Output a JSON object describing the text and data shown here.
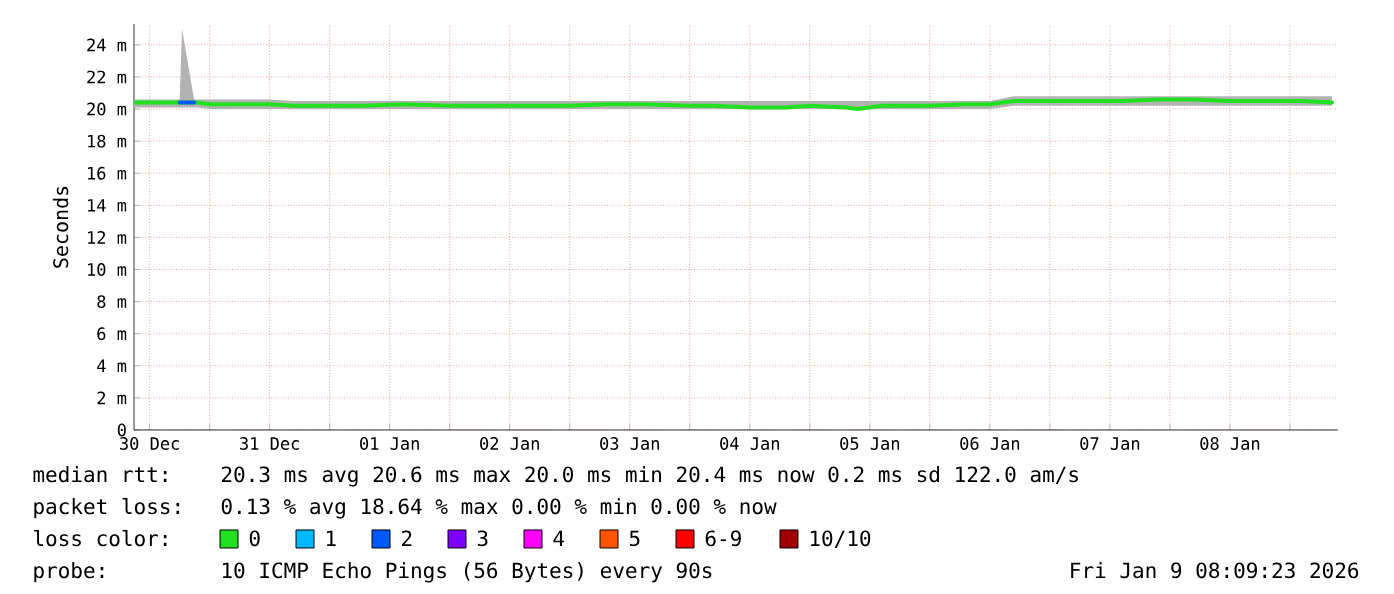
{
  "chart_data": {
    "type": "line",
    "ylabel": "Seconds",
    "legend_title": "loss color:",
    "legend": "bottom",
    "grid": true,
    "marker": "none",
    "line_style": "solid",
    "xlim": [
      "2025-12-29T20:53",
      "2026-01-08T21:36"
    ],
    "ylim": [
      0,
      25.3
    ],
    "xticks": [
      {
        "value": "2025-12-30T00:00",
        "label": "30 Dec"
      },
      {
        "value": "2025-12-30T12:00",
        "label": null
      },
      {
        "value": "2025-12-31T00:00",
        "label": "31 Dec"
      },
      {
        "value": "2025-12-31T12:00",
        "label": null
      },
      {
        "value": "2026-01-01T00:00",
        "label": "01 Jan"
      },
      {
        "value": "2026-01-01T12:00",
        "label": null
      },
      {
        "value": "2026-01-02T00:00",
        "label": "02 Jan"
      },
      {
        "value": "2026-01-02T12:00",
        "label": null
      },
      {
        "value": "2026-01-03T00:00",
        "label": "03 Jan"
      },
      {
        "value": "2026-01-03T12:00",
        "label": null
      },
      {
        "value": "2026-01-04T00:00",
        "label": "04 Jan"
      },
      {
        "value": "2026-01-04T12:00",
        "label": null
      },
      {
        "value": "2026-01-05T00:00",
        "label": "05 Jan"
      },
      {
        "value": "2026-01-05T12:00",
        "label": null
      },
      {
        "value": "2026-01-06T00:00",
        "label": "06 Jan"
      },
      {
        "value": "2026-01-06T12:00",
        "label": null
      },
      {
        "value": "2026-01-07T00:00",
        "label": "07 Jan"
      },
      {
        "value": "2026-01-07T12:00",
        "label": null
      },
      {
        "value": "2026-01-08T00:00",
        "label": "08 Jan"
      },
      {
        "value": "2026-01-08T12:00",
        "label": null
      }
    ],
    "yticks": [
      0,
      {
        "value": 2,
        "label": "2 m"
      },
      {
        "value": 4,
        "label": "4 m"
      },
      {
        "value": 6,
        "label": "6 m"
      },
      {
        "value": 8,
        "label": "8 m"
      },
      {
        "value": 10,
        "label": "10 m"
      },
      {
        "value": 12,
        "label": "12 m"
      },
      {
        "value": 14,
        "label": "14 m"
      },
      {
        "value": 16,
        "label": "16 m"
      },
      {
        "value": 18,
        "label": "18 m"
      },
      {
        "value": 20,
        "label": "20 m"
      },
      {
        "value": 22,
        "label": "22 m"
      },
      {
        "value": 24,
        "label": "24 m"
      }
    ],
    "x": [
      "2025-12-29T20:53",
      "2025-12-30T00:00",
      "2025-12-30T03:36",
      "2025-12-30T06:00",
      "2025-12-30T06:29",
      "2025-12-30T08:53",
      "2025-12-30T09:36",
      "2025-12-30T12:00",
      "2025-12-30T19:12",
      "2025-12-31T00:00",
      "2025-12-31T04:48",
      "2025-12-31T12:00",
      "2025-12-31T19:12",
      "2026-01-01T02:24",
      "2026-01-01T12:00",
      "2026-01-01T19:12",
      "2026-01-02T02:24",
      "2026-01-02T12:00",
      "2026-01-02T19:12",
      "2026-01-03T02:24",
      "2026-01-03T12:00",
      "2026-01-03T16:48",
      "2026-01-04T00:00",
      "2026-01-04T07:12",
      "2026-01-04T12:00",
      "2026-01-04T19:12",
      "2026-01-04T21:36",
      "2026-01-05T02:24",
      "2026-01-05T07:12",
      "2026-01-05T12:00",
      "2026-01-05T19:12",
      "2026-01-06T00:00",
      "2026-01-06T04:48",
      "2026-01-06T12:00",
      "2026-01-06T19:12",
      "2026-01-07T02:24",
      "2026-01-07T09:36",
      "2026-01-07T16:48",
      "2026-01-08T00:00",
      "2026-01-08T07:12",
      "2026-01-08T14:24",
      "2026-01-08T20:24"
    ],
    "series": [
      {
        "name": "0",
        "color": "#20e020",
        "values": [
          20.4,
          20.4,
          20.4,
          20.4,
          20.4,
          20.4,
          20.4,
          20.3,
          20.3,
          20.3,
          20.2,
          20.2,
          20.2,
          20.3,
          20.2,
          20.2,
          20.2,
          20.2,
          20.3,
          20.3,
          20.2,
          20.2,
          20.1,
          20.1,
          20.2,
          20.1,
          20.0,
          20.2,
          20.2,
          20.2,
          20.3,
          20.3,
          20.5,
          20.5,
          20.5,
          20.5,
          20.6,
          20.6,
          20.5,
          20.5,
          20.5,
          20.4
        ],
        "lower": [
          20.1,
          20.1,
          20.1,
          20.1,
          20.1,
          20.1,
          20.1,
          20.0,
          20.0,
          20.0,
          20.0,
          20.0,
          20.0,
          20.0,
          20.0,
          20.0,
          20.0,
          20.0,
          20.0,
          20.0,
          20.0,
          20.0,
          20.0,
          20.0,
          20.0,
          20.0,
          20.0,
          20.0,
          20.0,
          20.0,
          20.0,
          20.0,
          20.2,
          20.2,
          20.2,
          20.2,
          20.2,
          20.2,
          20.2,
          20.2,
          20.2,
          20.2
        ],
        "upper": [
          20.6,
          20.6,
          20.6,
          20.6,
          25.0,
          20.6,
          20.6,
          20.6,
          20.6,
          20.6,
          20.5,
          20.5,
          20.5,
          20.5,
          20.5,
          20.5,
          20.5,
          20.5,
          20.5,
          20.5,
          20.5,
          20.5,
          20.5,
          20.5,
          20.5,
          20.5,
          20.5,
          20.5,
          20.5,
          20.5,
          20.5,
          20.5,
          20.8,
          20.8,
          20.8,
          20.8,
          20.8,
          20.8,
          20.8,
          20.8,
          20.8,
          20.8
        ]
      },
      {
        "name": "1",
        "color": "#00b8ff",
        "values": [
          null,
          null,
          null,
          null,
          null,
          null,
          null,
          null,
          null,
          null,
          null,
          null,
          null,
          null,
          null,
          null,
          null,
          null,
          null,
          null,
          null,
          null,
          null,
          null,
          null,
          null,
          null,
          null,
          null,
          null,
          null,
          null,
          null,
          null,
          null,
          null,
          null,
          null,
          null,
          null,
          null,
          null
        ]
      },
      {
        "name": "2",
        "color": "#0059ff",
        "values": [
          null,
          null,
          null,
          20.4,
          20.4,
          20.4,
          null,
          null,
          null,
          null,
          null,
          null,
          null,
          null,
          null,
          null,
          null,
          null,
          null,
          null,
          null,
          null,
          null,
          null,
          null,
          null,
          null,
          null,
          null,
          null,
          null,
          null,
          null,
          null,
          null,
          null,
          null,
          null,
          null,
          null,
          null,
          null
        ]
      },
      {
        "name": "3",
        "color": "#7e00ff",
        "values": [
          null,
          null,
          null,
          null,
          null,
          null,
          null,
          null,
          null,
          null,
          null,
          null,
          null,
          null,
          null,
          null,
          null,
          null,
          null,
          null,
          null,
          null,
          null,
          null,
          null,
          null,
          null,
          null,
          null,
          null,
          null,
          null,
          null,
          null,
          null,
          null,
          null,
          null,
          null,
          null,
          null,
          null
        ]
      },
      {
        "name": "4",
        "color": "#ff00ff",
        "values": [
          null,
          null,
          null,
          null,
          null,
          null,
          null,
          null,
          null,
          null,
          null,
          null,
          null,
          null,
          null,
          null,
          null,
          null,
          null,
          null,
          null,
          null,
          null,
          null,
          null,
          null,
          null,
          null,
          null,
          null,
          null,
          null,
          null,
          null,
          null,
          null,
          null,
          null,
          null,
          null,
          null,
          null
        ]
      },
      {
        "name": "5",
        "color": "#ff5500",
        "values": [
          null,
          null,
          null,
          null,
          null,
          null,
          null,
          null,
          null,
          null,
          null,
          null,
          null,
          null,
          null,
          null,
          null,
          null,
          null,
          null,
          null,
          null,
          null,
          null,
          null,
          null,
          null,
          null,
          null,
          null,
          null,
          null,
          null,
          null,
          null,
          null,
          null,
          null,
          null,
          null,
          null,
          null
        ]
      },
      {
        "name": "6-9",
        "color": "#ff0000",
        "values": [
          null,
          null,
          null,
          null,
          null,
          null,
          null,
          null,
          null,
          null,
          null,
          null,
          null,
          null,
          null,
          null,
          null,
          null,
          null,
          null,
          null,
          null,
          null,
          null,
          null,
          null,
          null,
          null,
          null,
          null,
          null,
          null,
          null,
          null,
          null,
          null,
          null,
          null,
          null,
          null,
          null,
          null
        ]
      },
      {
        "name": "10/10",
        "color": "#a10000",
        "values": [
          null,
          null,
          null,
          null,
          null,
          null,
          null,
          null,
          null,
          null,
          null,
          null,
          null,
          null,
          null,
          null,
          null,
          null,
          null,
          null,
          null,
          null,
          null,
          null,
          null,
          null,
          null,
          null,
          null,
          null,
          null,
          null,
          null,
          null,
          null,
          null,
          null,
          null,
          null,
          null,
          null,
          null
        ]
      }
    ],
    "annotations": [
      "median rtt:",
      "20.3 ms avg 20.6 ms max 20.0 ms min 20.4 ms now 0.2 ms sd 122.0 am/s",
      "packet loss:",
      "0.13 % avg 18.64 % max 0.00 % min 0.00 % now",
      "probe:",
      "10 ICMP Echo Pings (56 Bytes) every 90s",
      "Fri Jan 9 08:09:23 2026"
    ]
  }
}
